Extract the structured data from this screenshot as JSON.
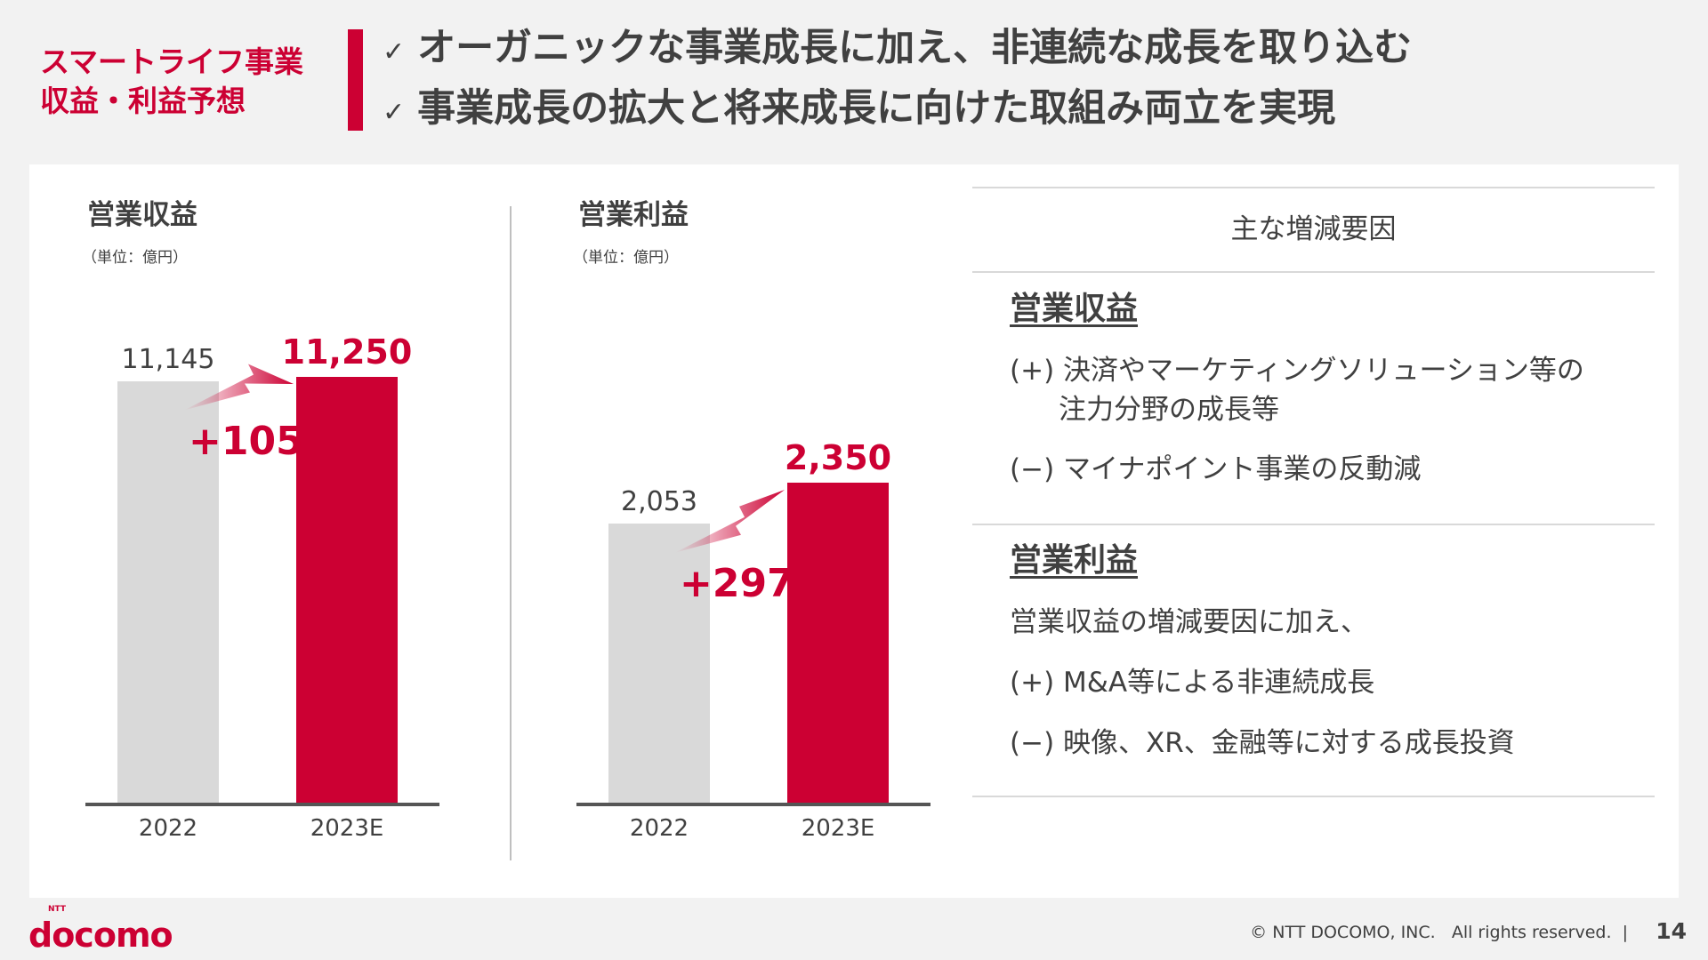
{
  "header": {
    "title_line1": "スマートライフ事業",
    "title_line2": "収益・利益予想",
    "check": "✓",
    "bullets": [
      "オーガニックな事業成長に加え、非連続な成長を取り込む",
      "事業成長の拡大と将来成長に向けた取組み両立を実現"
    ]
  },
  "chart_data": [
    {
      "type": "bar",
      "title": "営業収益",
      "unit": "（単位：億円）",
      "categories": [
        "2022",
        "2023E"
      ],
      "values": [
        11145,
        11250
      ],
      "value_labels": [
        "11,145",
        "11,250"
      ],
      "delta_label": "+105",
      "colors": [
        "#d9d9d9",
        "#cc0033"
      ],
      "ylim": [
        0,
        11700
      ]
    },
    {
      "type": "bar",
      "title": "営業利益",
      "unit": "（単位：億円）",
      "categories": [
        "2022",
        "2023E"
      ],
      "values": [
        2053,
        2350
      ],
      "value_labels": [
        "2,053",
        "2,350"
      ],
      "delta_label": "+297",
      "colors": [
        "#d9d9d9",
        "#cc0033"
      ],
      "ylim": [
        0,
        3250
      ]
    }
  ],
  "factors": {
    "header": "主な増減要因",
    "revenue": {
      "title": "営業収益",
      "items": [
        "(+) 決済やマーケティングソリューション等の",
        "注力分野の成長等",
        "(−) マイナポイント事業の反動減"
      ]
    },
    "profit": {
      "title": "営業利益",
      "items": [
        "営業収益の増減要因に加え、",
        "(+) M&A等による非連続成長",
        "(−) 映像、XR、金融等に対する成長投資"
      ]
    }
  },
  "footer": {
    "logo": "docomo",
    "logo_small": "NTT",
    "copyright": "© NTT DOCOMO, INC.   All rights reserved.  |",
    "page": "14"
  },
  "colors": {
    "accent": "#cc0033",
    "gray": "#d9d9d9"
  }
}
